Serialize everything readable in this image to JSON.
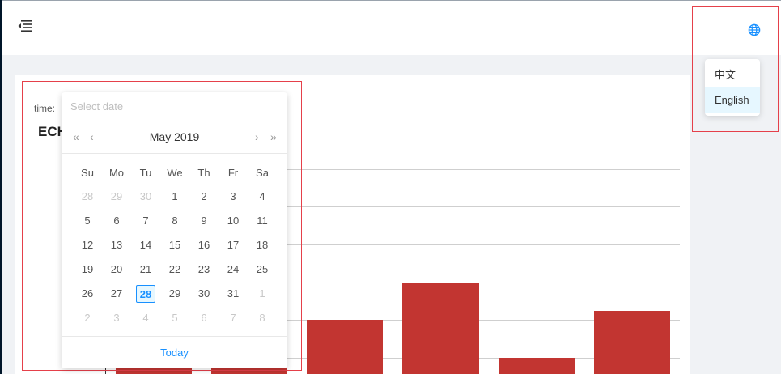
{
  "header": {
    "menu_icon": "menu-fold-icon",
    "globe_icon": "globe-icon"
  },
  "language_menu": {
    "items": [
      {
        "label": "中文"
      },
      {
        "label": "English"
      }
    ],
    "selected": "English"
  },
  "filter": {
    "time_label": "time:",
    "date_placeholder": "Select date"
  },
  "chart": {
    "title_visible": "ECH"
  },
  "datepicker": {
    "prev_year": "«",
    "prev_month": "‹",
    "month_title": "May 2019",
    "next_month": "›",
    "next_year": "»",
    "weekdays": [
      "Su",
      "Mo",
      "Tu",
      "We",
      "Th",
      "Fr",
      "Sa"
    ],
    "weeks": [
      [
        "28",
        "29",
        "30",
        "1",
        "2",
        "3",
        "4"
      ],
      [
        "5",
        "6",
        "7",
        "8",
        "9",
        "10",
        "11"
      ],
      [
        "12",
        "13",
        "14",
        "15",
        "16",
        "17",
        "18"
      ],
      [
        "19",
        "20",
        "21",
        "22",
        "23",
        "24",
        "25"
      ],
      [
        "26",
        "27",
        "28",
        "29",
        "30",
        "31",
        "1"
      ],
      [
        "2",
        "3",
        "4",
        "5",
        "6",
        "7",
        "8"
      ]
    ],
    "today_label": "Today",
    "selected_day": "28"
  },
  "colors": {
    "bar": "#c23531",
    "highlight_box": "#e5404a",
    "accent": "#1890ff"
  }
}
